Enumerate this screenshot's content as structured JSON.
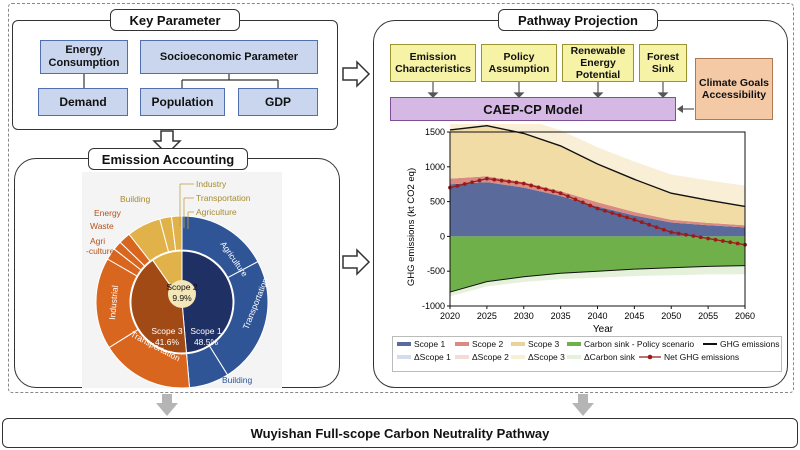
{
  "key_parameter": {
    "title": "Key Parameter",
    "energy": "Energy Consumption",
    "socio": "Socioeconomic Parameter",
    "demand": "Demand",
    "population": "Population",
    "gdp": "GDP"
  },
  "emission_accounting": {
    "title": "Emission Accounting",
    "outer_labels": {
      "industry": "Industry",
      "transportation": "Transportation",
      "agriculture": "Agriculture",
      "building": "Building",
      "energy": "Energy",
      "waste": "Waste",
      "agri_1": "Agri",
      "agri_2": "-culture"
    },
    "ring_labels": {
      "agriculture": "Agriculture",
      "transportation_r": "Transportation",
      "building_r": "Building",
      "industrial": "Industrial",
      "transportation_l": "Transportation"
    },
    "scopes": {
      "scope2_name": "Scope 2",
      "scope2_pct": "9.9%",
      "scope3_name": "Scope 3",
      "scope3_pct": "41.6%",
      "scope1_name": "Scope 1",
      "scope1_pct": "48.5%"
    },
    "colors": {
      "scope1": "#2f5597",
      "scope1_inner": "#1f3064",
      "scope2": "#e2b24a",
      "scope3": "#d9661f",
      "scope3_inner": "#a24a16"
    }
  },
  "pathway": {
    "title": "Pathway Projection",
    "emission_char": "Emission Characteristics",
    "policy": "Policy Assumption",
    "renewable": "Renewable Energy Potential",
    "forest": "Forest Sink",
    "climate": "Climate Goals Accessibility",
    "model": "CAEP-CP Model"
  },
  "chart_data": {
    "type": "area",
    "ylabel": "GHG emissions (kt CO2 eq)",
    "xlabel": "Year",
    "xlim": [
      2020,
      2060
    ],
    "ylim": [
      -1000,
      1500
    ],
    "x_ticks": [
      2020,
      2025,
      2030,
      2035,
      2040,
      2045,
      2050,
      2055,
      2060
    ],
    "y_ticks": [
      -1000,
      -500,
      0,
      500,
      1000,
      1500
    ],
    "x": [
      2020,
      2025,
      2030,
      2035,
      2040,
      2045,
      2050,
      2055,
      2060
    ],
    "series": [
      {
        "name": "Scope 1",
        "color": "#5a6a9a",
        "values": [
          750,
          780,
          700,
          580,
          430,
          300,
          200,
          160,
          130
        ]
      },
      {
        "name": "Scope 2",
        "color": "#d98a82",
        "values": [
          80,
          85,
          80,
          70,
          60,
          50,
          40,
          35,
          30
        ]
      },
      {
        "name": "Scope 3",
        "color": "#f1dca6",
        "values": [
          700,
          720,
          700,
          650,
          550,
          470,
          380,
          320,
          270
        ]
      },
      {
        "name": "Carbon sink - Policy scenario",
        "color": "#6fb04a",
        "values": [
          -800,
          -650,
          -580,
          -530,
          -500,
          -470,
          -450,
          -430,
          -420
        ]
      },
      {
        "name": "GHG emissions",
        "color": "#111111",
        "values": [
          1530,
          1590,
          1480,
          1300,
          1040,
          820,
          620,
          520,
          430
        ]
      },
      {
        "name": "Net GHG emissions",
        "color": "#9b1b1b",
        "values": [
          700,
          830,
          760,
          620,
          400,
          240,
          60,
          -30,
          -120
        ]
      }
    ],
    "delta_series": [
      {
        "name": "ΔScope 1",
        "color": "#d5dcef"
      },
      {
        "name": "ΔScope 2",
        "color": "#f3dcd8"
      },
      {
        "name": "ΔScope 3",
        "color": "#f8efd6"
      },
      {
        "name": "ΔCarbon sink",
        "color": "#e6f1dc"
      }
    ]
  },
  "bottom": {
    "title": "Wuyishan Full-scope Carbon Neutrality Pathway"
  }
}
